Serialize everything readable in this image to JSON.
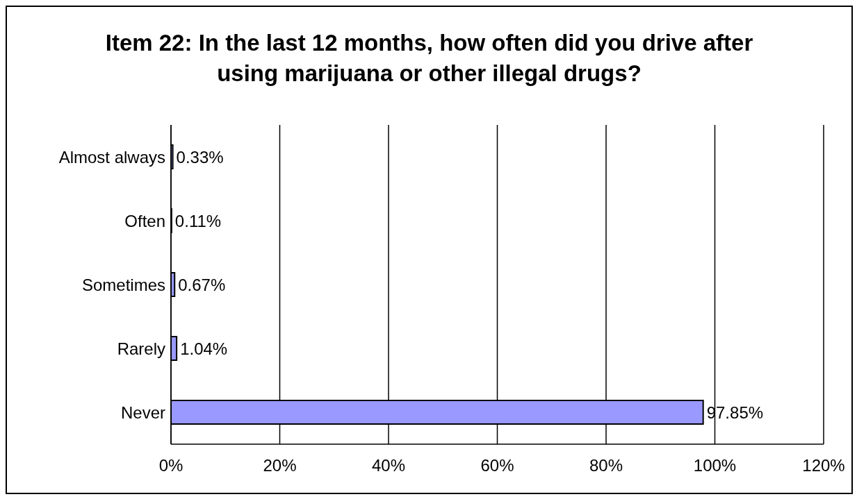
{
  "chart_data": {
    "type": "bar",
    "orientation": "horizontal",
    "title": "Item 22:  In the last 12 months, how often did you drive after using marijuana or other illegal drugs?",
    "categories": [
      "Almost always",
      "Often",
      "Sometimes",
      "Rarely",
      "Never"
    ],
    "values": [
      0.33,
      0.11,
      0.67,
      1.04,
      97.85
    ],
    "value_labels": [
      "0.33%",
      "0.11%",
      "0.67%",
      "1.04%",
      "97.85%"
    ],
    "color": "#9999ff",
    "xlim": [
      0,
      120
    ],
    "xticks": [
      {
        "value": 0,
        "label": "0%"
      },
      {
        "value": 20,
        "label": "20%"
      },
      {
        "value": 40,
        "label": "40%"
      },
      {
        "value": 60,
        "label": "60%"
      },
      {
        "value": 80,
        "label": "80%"
      },
      {
        "value": 100,
        "label": "100%"
      },
      {
        "value": 120,
        "label": "120%"
      }
    ],
    "grid": "x",
    "legend": false
  }
}
